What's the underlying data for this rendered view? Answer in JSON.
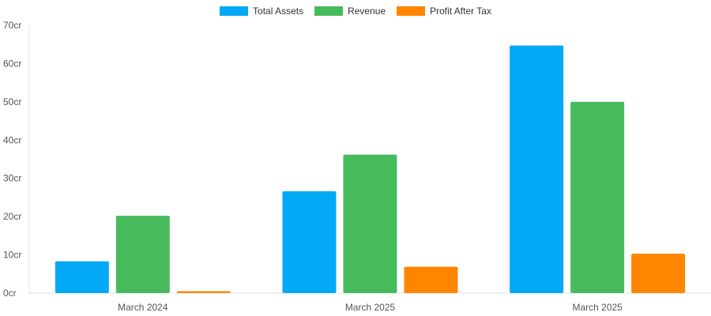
{
  "chart_data": {
    "type": "bar",
    "categories": [
      "March 2024",
      "March 2025",
      "March 2025"
    ],
    "series": [
      {
        "name": "Total Assets",
        "color": "#03A9F4",
        "values": [
          8.3,
          26.6,
          64.7
        ]
      },
      {
        "name": "Revenue",
        "color": "#47BB5C",
        "values": [
          20.2,
          36.2,
          50.0
        ]
      },
      {
        "name": "Profit After Tax",
        "color": "#FF8500",
        "values": [
          0.5,
          6.9,
          10.3
        ]
      }
    ],
    "yticks": [
      "0cr",
      "10cr",
      "20cr",
      "30cr",
      "40cr",
      "50cr",
      "60cr",
      "70cr"
    ],
    "ylim": [
      0,
      70
    ],
    "legend_position": "top-center",
    "grid": false
  }
}
